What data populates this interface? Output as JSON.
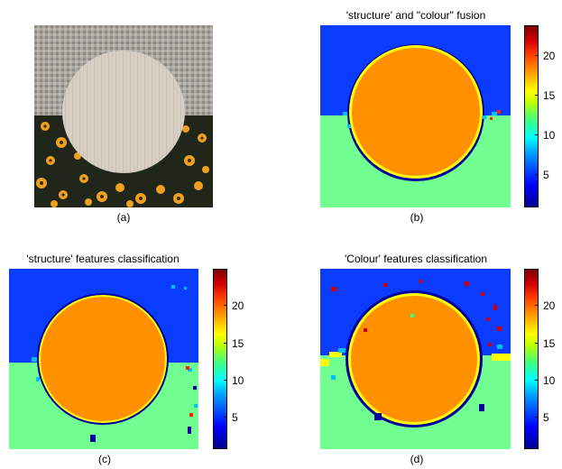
{
  "panels": [
    {
      "id": "a",
      "caption": "(a)",
      "title": ""
    },
    {
      "id": "b",
      "caption": "(b)",
      "title": "'structure' and \"colour\" fusion"
    },
    {
      "id": "c",
      "caption": "(c)",
      "title": "'structure' features classification"
    },
    {
      "id": "d",
      "caption": "(d)",
      "title": "'Colour' features classification"
    }
  ],
  "colorbar": {
    "ticks": [
      "5",
      "10",
      "15",
      "20"
    ],
    "range": [
      1,
      24
    ]
  },
  "colors": {
    "blue_region": "#0a3cff",
    "green_region": "#70ff90",
    "orange_region": "#ff9000",
    "fabric": "#a9a6a0",
    "wood_disc": "#d8cfc4",
    "flowers_dark": "#20261a",
    "flower_petal": "#f0a020"
  }
}
